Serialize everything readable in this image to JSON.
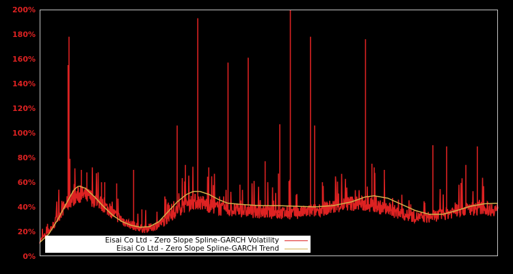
{
  "chart_data": {
    "type": "line",
    "title": "",
    "xlabel": "",
    "ylabel": "",
    "ylim": [
      0,
      200
    ],
    "y_ticks": [
      "0%",
      "20%",
      "40%",
      "60%",
      "80%",
      "100%",
      "120%",
      "140%",
      "160%",
      "180%",
      "200%"
    ],
    "grid": false,
    "legend_position": "lower left (inside plot)",
    "background": "#000000",
    "series": [
      {
        "name": "Eisai Co Ltd - Zero Slope Spline-GARCH Volatility",
        "color": "#dd2222",
        "baseline_by_x_fraction": [
          [
            0.0,
            12
          ],
          [
            0.03,
            25
          ],
          [
            0.05,
            38
          ],
          [
            0.07,
            47
          ],
          [
            0.09,
            50
          ],
          [
            0.11,
            48
          ],
          [
            0.13,
            44
          ],
          [
            0.15,
            38
          ],
          [
            0.17,
            32
          ],
          [
            0.19,
            27
          ],
          [
            0.21,
            24
          ],
          [
            0.23,
            22
          ],
          [
            0.25,
            24
          ],
          [
            0.27,
            28
          ],
          [
            0.29,
            34
          ],
          [
            0.31,
            40
          ],
          [
            0.33,
            44
          ],
          [
            0.35,
            44
          ],
          [
            0.37,
            41
          ],
          [
            0.4,
            38
          ],
          [
            0.44,
            37
          ],
          [
            0.48,
            36
          ],
          [
            0.52,
            35
          ],
          [
            0.56,
            35
          ],
          [
            0.6,
            37
          ],
          [
            0.64,
            40
          ],
          [
            0.68,
            43
          ],
          [
            0.72,
            42
          ],
          [
            0.76,
            38
          ],
          [
            0.8,
            33
          ],
          [
            0.84,
            31
          ],
          [
            0.88,
            34
          ],
          [
            0.92,
            38
          ],
          [
            0.96,
            39
          ],
          [
            1.0,
            38
          ]
        ],
        "spikes_by_x_fraction": [
          [
            0.062,
            155
          ],
          [
            0.064,
            178
          ],
          [
            0.066,
            79
          ],
          [
            0.091,
            70
          ],
          [
            0.103,
            68
          ],
          [
            0.135,
            60
          ],
          [
            0.142,
            60
          ],
          [
            0.168,
            59
          ],
          [
            0.205,
            70
          ],
          [
            0.223,
            38
          ],
          [
            0.3,
            106
          ],
          [
            0.318,
            74
          ],
          [
            0.345,
            193
          ],
          [
            0.369,
            72
          ],
          [
            0.411,
            157
          ],
          [
            0.437,
            58
          ],
          [
            0.455,
            161
          ],
          [
            0.492,
            77
          ],
          [
            0.521,
            67
          ],
          [
            0.524,
            107
          ],
          [
            0.544,
            61
          ],
          [
            0.546,
            62
          ],
          [
            0.547,
            200
          ],
          [
            0.591,
            178
          ],
          [
            0.6,
            106
          ],
          [
            0.617,
            60
          ],
          [
            0.711,
            176
          ],
          [
            0.725,
            75
          ],
          [
            0.73,
            72
          ],
          [
            0.752,
            70
          ],
          [
            0.858,
            90
          ],
          [
            0.888,
            89
          ],
          [
            0.93,
            74
          ],
          [
            0.955,
            89
          ]
        ]
      },
      {
        "name": "Eisai Co Ltd - Zero Slope Spline-GARCH Trend",
        "color": "#d4b04a",
        "values_by_x_fraction": [
          [
            0.0,
            11
          ],
          [
            0.02,
            18
          ],
          [
            0.04,
            30
          ],
          [
            0.06,
            44
          ],
          [
            0.075,
            54
          ],
          [
            0.085,
            57
          ],
          [
            0.1,
            55
          ],
          [
            0.12,
            48
          ],
          [
            0.14,
            40
          ],
          [
            0.16,
            33
          ],
          [
            0.18,
            28
          ],
          [
            0.2,
            25
          ],
          [
            0.22,
            23.5
          ],
          [
            0.24,
            24
          ],
          [
            0.26,
            28
          ],
          [
            0.28,
            36
          ],
          [
            0.3,
            44
          ],
          [
            0.32,
            50
          ],
          [
            0.335,
            52.5
          ],
          [
            0.35,
            52.5
          ],
          [
            0.37,
            50
          ],
          [
            0.39,
            46
          ],
          [
            0.41,
            43
          ],
          [
            0.44,
            42
          ],
          [
            0.48,
            41
          ],
          [
            0.52,
            41
          ],
          [
            0.56,
            40.5
          ],
          [
            0.6,
            40
          ],
          [
            0.64,
            41
          ],
          [
            0.68,
            44
          ],
          [
            0.71,
            48
          ],
          [
            0.73,
            49
          ],
          [
            0.76,
            47
          ],
          [
            0.79,
            42
          ],
          [
            0.82,
            37
          ],
          [
            0.85,
            34
          ],
          [
            0.88,
            34
          ],
          [
            0.91,
            37
          ],
          [
            0.94,
            40.5
          ],
          [
            0.97,
            42.5
          ],
          [
            1.0,
            43
          ]
        ]
      }
    ]
  },
  "legend": {
    "items": [
      {
        "label": "Eisai Co Ltd - Zero Slope Spline-GARCH Volatility",
        "color": "#dd2222"
      },
      {
        "label": "Eisai Co Ltd - Zero Slope Spline-GARCH Trend",
        "color": "#d4b04a"
      }
    ]
  }
}
